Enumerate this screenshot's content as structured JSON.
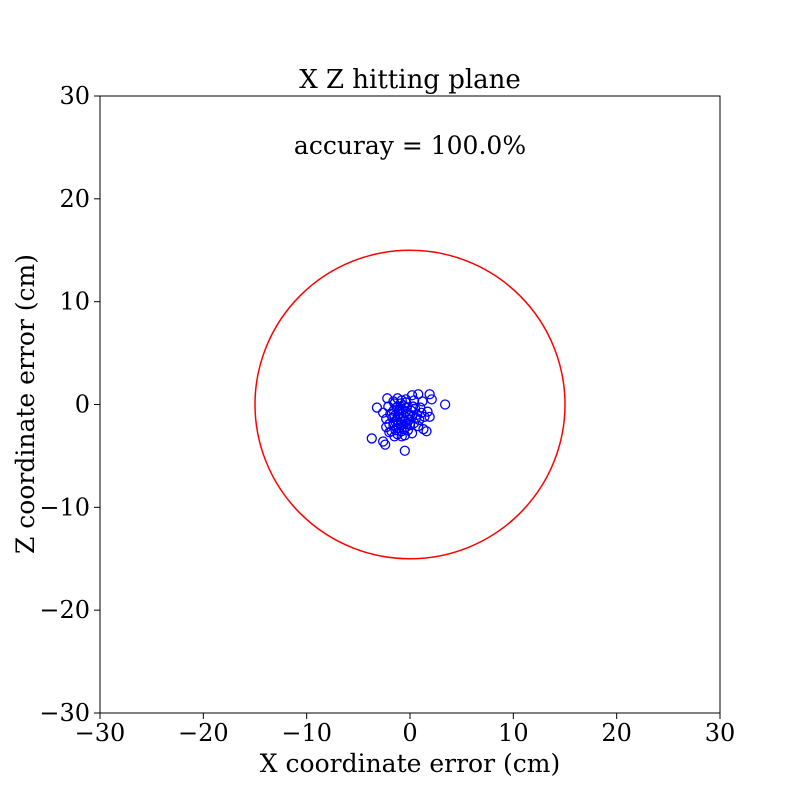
{
  "chart_data": {
    "type": "scatter",
    "title": "X Z hitting plane",
    "annotation": "accuray = 100.0%",
    "xlabel": "X coordinate error (cm)",
    "ylabel": "Z coordinate error (cm)",
    "xlim": [
      -30,
      30
    ],
    "ylim": [
      -30,
      30
    ],
    "xticks": [
      -30,
      -20,
      -10,
      0,
      10,
      20,
      30
    ],
    "yticks": [
      -30,
      -20,
      -10,
      0,
      10,
      20,
      30
    ],
    "xtick_labels": [
      "−30",
      "−20",
      "−10",
      "0",
      "10",
      "20",
      "30"
    ],
    "ytick_labels": [
      "−30",
      "−20",
      "−10",
      "0",
      "10",
      "20",
      "30"
    ],
    "grid": false,
    "legend": "none",
    "target_circle": {
      "center": [
        0,
        0
      ],
      "radius": 15,
      "color": "#ff0000"
    },
    "marker_color": "#0000ff",
    "marker_style": "hollow-circle",
    "points": [
      [
        -3.2,
        -0.3
      ],
      [
        -2.2,
        0.6
      ],
      [
        -1.6,
        0.3
      ],
      [
        -1.2,
        0.6
      ],
      [
        -0.8,
        0.4
      ],
      [
        -0.4,
        0.5
      ],
      [
        0.2,
        0.9
      ],
      [
        0.8,
        1.0
      ],
      [
        1.2,
        0.3
      ],
      [
        1.9,
        1.0
      ],
      [
        2.1,
        0.5
      ],
      [
        3.4,
        0.0
      ],
      [
        -2.6,
        -0.8
      ],
      [
        -2.3,
        -1.4
      ],
      [
        -2.0,
        -1.9
      ],
      [
        -1.8,
        -2.6
      ],
      [
        -1.6,
        -0.6
      ],
      [
        -1.5,
        -1.1
      ],
      [
        -1.4,
        -1.7
      ],
      [
        -1.3,
        -2.3
      ],
      [
        -1.2,
        -0.2
      ],
      [
        -1.1,
        -0.9
      ],
      [
        -1.0,
        -1.4
      ],
      [
        -0.9,
        -2.0
      ],
      [
        -0.8,
        -2.6
      ],
      [
        -0.7,
        -0.5
      ],
      [
        -0.6,
        -1.1
      ],
      [
        -0.5,
        -1.6
      ],
      [
        -0.4,
        -2.2
      ],
      [
        -0.3,
        -0.3
      ],
      [
        -0.2,
        -0.9
      ],
      [
        -0.1,
        -1.5
      ],
      [
        0.0,
        -2.0
      ],
      [
        0.1,
        -0.6
      ],
      [
        0.2,
        -1.2
      ],
      [
        0.4,
        -1.8
      ],
      [
        0.5,
        -0.4
      ],
      [
        0.7,
        -1.0
      ],
      [
        0.9,
        -1.5
      ],
      [
        1.1,
        -0.8
      ],
      [
        1.4,
        -1.2
      ],
      [
        1.7,
        -0.7
      ],
      [
        1.9,
        -1.2
      ],
      [
        1.3,
        -2.4
      ],
      [
        1.6,
        -2.6
      ],
      [
        0.2,
        -2.8
      ],
      [
        -0.5,
        -3.0
      ],
      [
        -1.2,
        -2.9
      ],
      [
        -2.6,
        -3.6
      ],
      [
        -2.4,
        -3.9
      ],
      [
        -3.7,
        -3.3
      ],
      [
        -0.5,
        -4.5
      ],
      [
        -0.8,
        -3.1
      ],
      [
        -1.5,
        -3.1
      ],
      [
        -1.3,
        -0.3
      ],
      [
        -0.9,
        0.1
      ],
      [
        -0.6,
        -0.1
      ],
      [
        -1.0,
        -0.6
      ],
      [
        -0.7,
        -1.3
      ],
      [
        -1.1,
        -1.8
      ],
      [
        -0.3,
        -1.9
      ],
      [
        0.3,
        -0.2
      ],
      [
        0.6,
        -1.3
      ],
      [
        -1.7,
        -1.3
      ],
      [
        -1.9,
        -0.9
      ],
      [
        -1.4,
        -2.5
      ],
      [
        -0.2,
        -2.5
      ],
      [
        0.8,
        -2.1
      ],
      [
        1.0,
        -0.3
      ],
      [
        -2.1,
        -0.2
      ],
      [
        -1.5,
        0.1
      ],
      [
        -0.4,
        0.2
      ],
      [
        0.4,
        0.4
      ],
      [
        -2.3,
        -2.2
      ],
      [
        -2.0,
        -2.7
      ],
      [
        -1.1,
        -2.3
      ],
      [
        -0.6,
        -2.4
      ],
      [
        -1.2,
        -1.2
      ],
      [
        -0.8,
        -1.7
      ],
      [
        -0.4,
        -0.7
      ],
      [
        0.0,
        -1.0
      ],
      [
        -0.9,
        -0.4
      ],
      [
        -1.6,
        -2.0
      ],
      [
        -1.3,
        -1.5
      ]
    ]
  }
}
